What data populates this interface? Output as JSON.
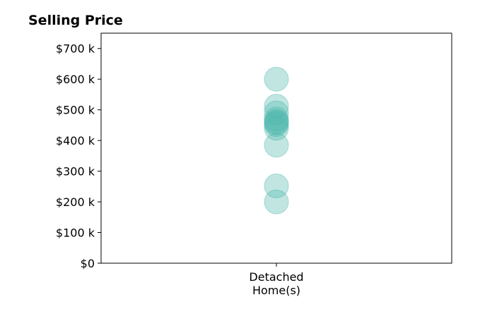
{
  "chart_data": {
    "type": "scatter",
    "title": "Selling Price",
    "xlabel": "",
    "ylabel": "",
    "categories": [
      "Detached\nHome(s)"
    ],
    "y_ticks": [
      0,
      100000,
      200000,
      300000,
      400000,
      500000,
      600000,
      700000
    ],
    "y_tick_labels": [
      "$0",
      "$100 k",
      "$200 k",
      "$300 k",
      "$400 k",
      "$500 k",
      "$600 k",
      "$700 k"
    ],
    "ylim": [
      0,
      750000
    ],
    "grid": false,
    "legend": "none",
    "series": [
      {
        "color": "#4db6ac",
        "category": "Detached\nHome(s)",
        "values": [
          600000,
          512000,
          490000,
          470000,
          462000,
          458000,
          452000,
          440000,
          385000,
          252000,
          200000
        ]
      }
    ]
  }
}
